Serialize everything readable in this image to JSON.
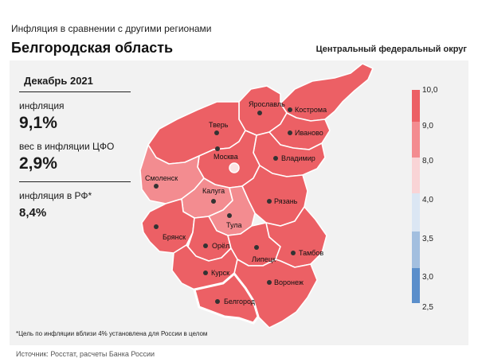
{
  "header": {
    "subtitle": "Инфляция в сравнении с другими регионами",
    "title": "Белгородская область",
    "district": "Центральный федеральный округ"
  },
  "stats": {
    "period": "Декабрь 2021",
    "inflation_label": "инфляция",
    "inflation_value": "9,1%",
    "weight_label": "вес в инфляции ЦФО",
    "weight_value": "2,9%",
    "rf_label": "инфляция в РФ*",
    "rf_value": "8,4%"
  },
  "legend": {
    "labels": [
      "10,0",
      "9,0",
      "8,0",
      "4,0",
      "3,5",
      "3,0",
      "2,5"
    ],
    "colors": [
      "#ec6065",
      "#f38c90",
      "#f9d4d6",
      "#dbe6f3",
      "#a3bfdf",
      "#5b8fcb"
    ]
  },
  "regions": [
    {
      "name": "Ярославль",
      "color": "#ec6065"
    },
    {
      "name": "Кострома",
      "color": "#ec6065"
    },
    {
      "name": "Тверь",
      "color": "#ec6065"
    },
    {
      "name": "Иваново",
      "color": "#ec6065"
    },
    {
      "name": "Москва",
      "color": "#ec6065"
    },
    {
      "name": "Владимир",
      "color": "#ec6065"
    },
    {
      "name": "Смоленск",
      "color": "#f38c90"
    },
    {
      "name": "Калуга",
      "color": "#f38c90"
    },
    {
      "name": "Рязань",
      "color": "#ec6065"
    },
    {
      "name": "Тула",
      "color": "#f38c90"
    },
    {
      "name": "Брянск",
      "color": "#ec6065"
    },
    {
      "name": "Орёл",
      "color": "#ec6065"
    },
    {
      "name": "Липецк",
      "color": "#ec6065"
    },
    {
      "name": "Тамбов",
      "color": "#ec6065"
    },
    {
      "name": "Курск",
      "color": "#ec6065"
    },
    {
      "name": "Воронеж",
      "color": "#ec6065"
    },
    {
      "name": "Белгород",
      "color": "#ec6065"
    }
  ],
  "footnote": "*Цель по инфляции вблизи 4% установлена для России в целом",
  "source": "Источник: Росстат, расчеты Банка России"
}
